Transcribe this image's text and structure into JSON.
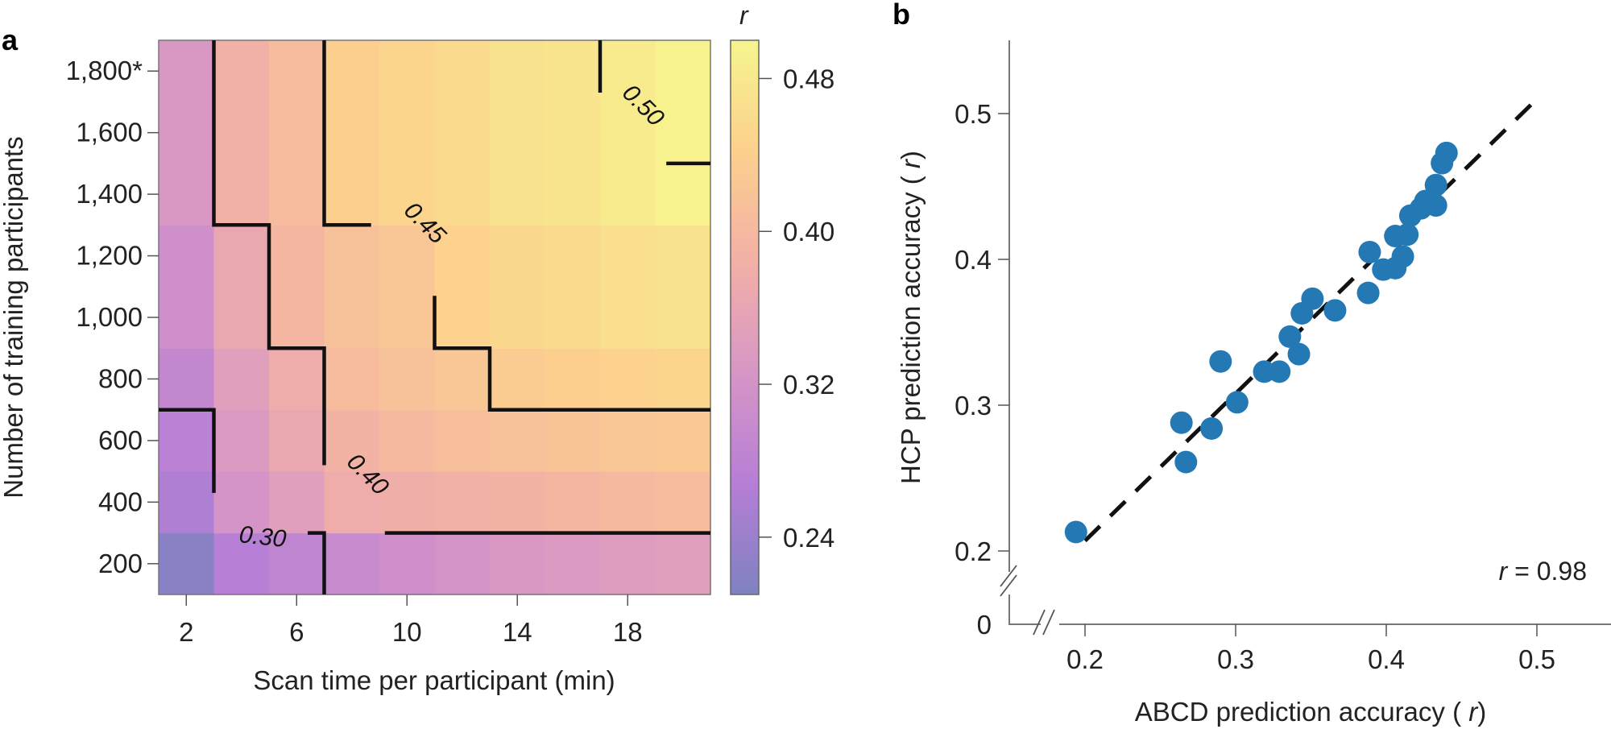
{
  "chart_data": [
    {
      "panel": "a",
      "type": "heatmap",
      "xlabel": "Scan time per participant (min)",
      "ylabel": "Number of training participants",
      "x_ticks": [
        2,
        6,
        10,
        14,
        18
      ],
      "x_tick_labels": [
        "2",
        "6",
        "10",
        "14",
        "18"
      ],
      "y_ticks": [
        200,
        400,
        600,
        800,
        1000,
        1200,
        1400,
        1600,
        1800
      ],
      "y_tick_labels": [
        "200",
        "400",
        "600",
        "800",
        "1,000",
        "1,200",
        "1,400",
        "1,600",
        "1,800*"
      ],
      "xlim": [
        1,
        21
      ],
      "ylim": [
        100,
        1900
      ],
      "columns": [
        2,
        4,
        6,
        8,
        10,
        12,
        14,
        16,
        18,
        20
      ],
      "row_bands": [
        [
          100,
          300
        ],
        [
          300,
          500
        ],
        [
          500,
          700
        ],
        [
          700,
          900
        ],
        [
          900,
          1300
        ],
        [
          1300,
          1900
        ]
      ],
      "values": [
        [
          0.22,
          0.27,
          0.285,
          0.3,
          0.31,
          0.32,
          0.33,
          0.335,
          0.34,
          0.345
        ],
        [
          0.26,
          0.32,
          0.345,
          0.375,
          0.38,
          0.385,
          0.39,
          0.395,
          0.4,
          0.405
        ],
        [
          0.275,
          0.335,
          0.365,
          0.39,
          0.4,
          0.41,
          0.415,
          0.42,
          0.425,
          0.43
        ],
        [
          0.29,
          0.345,
          0.375,
          0.405,
          0.415,
          0.425,
          0.435,
          0.44,
          0.445,
          0.45
        ],
        [
          0.31,
          0.365,
          0.395,
          0.415,
          0.425,
          0.445,
          0.455,
          0.46,
          0.465,
          0.47
        ],
        [
          0.33,
          0.385,
          0.405,
          0.44,
          0.45,
          0.46,
          0.47,
          0.475,
          0.485,
          0.495
        ]
      ],
      "contours": [
        {
          "level": "0.30",
          "label": "0.30"
        },
        {
          "level": "0.40",
          "label": "0.40"
        },
        {
          "level": "0.45",
          "label": "0.45"
        },
        {
          "level": "0.50",
          "label": "0.50"
        }
      ],
      "colorbar": {
        "title": "r",
        "ticks": [
          0.24,
          0.32,
          0.4,
          0.48
        ],
        "tick_labels": [
          "0.24",
          "0.32",
          "0.40",
          "0.48"
        ],
        "range": [
          0.21,
          0.5
        ],
        "colors": [
          "#7f82c0",
          "#b67ed6",
          "#d796c6",
          "#f2b0a6",
          "#fcd08e",
          "#f6f58e"
        ]
      }
    },
    {
      "panel": "b",
      "type": "scatter",
      "xlabel": "ABCD prediction accuracy (r)",
      "ylabel": "HCP prediction accuracy (r)",
      "x_ticks": [
        0.2,
        0.3,
        0.4,
        0.5
      ],
      "x_tick_labels": [
        "0.2",
        "0.3",
        "0.4",
        "0.5"
      ],
      "y_ticks": [
        0.2,
        0.3,
        0.4,
        0.5
      ],
      "y_tick_labels": [
        "0.2",
        "0.3",
        "0.4",
        "0.5"
      ],
      "y_origin_label": "0",
      "axis_breaks": true,
      "xlim": [
        0.15,
        0.53
      ],
      "ylim": [
        0.15,
        0.55
      ],
      "point_color": "#2478b4",
      "points": [
        [
          0.194,
          0.213
        ],
        [
          0.264,
          0.288
        ],
        [
          0.267,
          0.261
        ],
        [
          0.29,
          0.33
        ],
        [
          0.284,
          0.284
        ],
        [
          0.301,
          0.302
        ],
        [
          0.319,
          0.323
        ],
        [
          0.329,
          0.323
        ],
        [
          0.336,
          0.347
        ],
        [
          0.342,
          0.335
        ],
        [
          0.344,
          0.363
        ],
        [
          0.351,
          0.373
        ],
        [
          0.366,
          0.365
        ],
        [
          0.388,
          0.377
        ],
        [
          0.389,
          0.405
        ],
        [
          0.398,
          0.393
        ],
        [
          0.406,
          0.394
        ],
        [
          0.411,
          0.402
        ],
        [
          0.406,
          0.416
        ],
        [
          0.414,
          0.417
        ],
        [
          0.416,
          0.43
        ],
        [
          0.423,
          0.435
        ],
        [
          0.426,
          0.44
        ],
        [
          0.433,
          0.437
        ],
        [
          0.433,
          0.451
        ],
        [
          0.437,
          0.466
        ],
        [
          0.44,
          0.473
        ]
      ],
      "fit_line": {
        "x": [
          0.2,
          0.5
        ],
        "y": [
          0.207,
          0.51
        ],
        "style": "dashed"
      },
      "annotation": {
        "r_symbol": "r",
        "text": " = 0.98"
      }
    }
  ],
  "labels": {
    "panel_a": "a",
    "panel_b": "b"
  }
}
